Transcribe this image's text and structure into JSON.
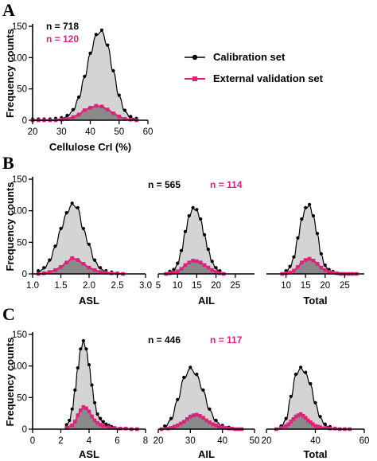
{
  "colors": {
    "calibration": "#000000",
    "validation": "#e0207a",
    "fill_calibration": "#d4d4d4",
    "fill_validation": "#8a8a8a"
  },
  "legend": {
    "calibration": "Calibration set",
    "validation": "External validation set"
  },
  "chart_data": [
    {
      "type": "scatter",
      "panel": "A",
      "xlabel": "Cellulose CrI (%)",
      "ylabel": "Frequency counts",
      "xlim": [
        20,
        60
      ],
      "ylim": [
        0,
        150
      ],
      "xticks": [
        "20",
        "30",
        "40",
        "50",
        "60"
      ],
      "yticks": [
        "0",
        "50",
        "100",
        "150"
      ],
      "n_calibration": "n = 718",
      "n_validation": "n = 120",
      "series": [
        {
          "name": "Calibration set",
          "x": [
            20,
            22,
            24,
            26,
            28,
            30,
            32,
            34,
            36,
            38,
            40,
            42,
            44,
            46,
            48,
            50,
            52,
            54,
            56
          ],
          "y": [
            0,
            0,
            0,
            0,
            1,
            2,
            6,
            15,
            35,
            68,
            105,
            135,
            142,
            118,
            77,
            38,
            14,
            4,
            1
          ]
        },
        {
          "name": "External validation set",
          "x": [
            20,
            22,
            24,
            26,
            28,
            30,
            32,
            34,
            36,
            38,
            40,
            42,
            44,
            46,
            48,
            50,
            52,
            54,
            56
          ],
          "y": [
            0,
            0,
            0,
            0,
            0,
            1,
            2,
            5,
            9,
            16,
            20,
            23,
            22,
            17,
            11,
            6,
            2,
            1,
            0
          ]
        }
      ]
    },
    {
      "type": "scatter",
      "panel": "B",
      "ylabel": "Frequency counts",
      "ylim": [
        0,
        150
      ],
      "yticks": [
        "0",
        "50",
        "100",
        "150"
      ],
      "n_calibration": "n = 565",
      "n_validation": "n = 114",
      "subplots": [
        {
          "xlabel": "ASL",
          "xlim": [
            1.0,
            3.0
          ],
          "xticks": [
            "1.0",
            "1.5",
            "2.0",
            "2.5",
            "3.0"
          ],
          "series": [
            {
              "name": "Calibration set",
              "x": [
                1.1,
                1.2,
                1.3,
                1.4,
                1.5,
                1.6,
                1.7,
                1.8,
                1.9,
                2.0,
                2.1,
                2.2,
                2.3,
                2.4
              ],
              "y": [
                3,
                8,
                20,
                42,
                70,
                95,
                110,
                103,
                70,
                45,
                20,
                8,
                3,
                1
              ]
            },
            {
              "name": "External validation set",
              "x": [
                1.1,
                1.2,
                1.3,
                1.4,
                1.5,
                1.6,
                1.7,
                1.8,
                1.9,
                2.0,
                2.1,
                2.2,
                2.3,
                2.4,
                2.5,
                2.6
              ],
              "y": [
                0,
                1,
                3,
                6,
                11,
                18,
                25,
                22,
                16,
                10,
                6,
                3,
                2,
                1,
                1,
                0
              ]
            }
          ]
        },
        {
          "xlabel": "AIL",
          "xlim": [
            5,
            30
          ],
          "xticks": [
            "5",
            "10",
            "15",
            "20",
            "25"
          ],
          "series": [
            {
              "name": "Calibration set",
              "x": [
                8,
                9,
                10,
                11,
                12,
                13,
                14,
                15,
                16,
                17,
                18,
                19,
                20,
                21
              ],
              "y": [
                2,
                5,
                15,
                35,
                65,
                90,
                103,
                100,
                85,
                60,
                37,
                18,
                8,
                3
              ]
            },
            {
              "name": "External validation set",
              "x": [
                7,
                8,
                9,
                10,
                11,
                12,
                13,
                14,
                15,
                16,
                17,
                18,
                19,
                20,
                21,
                22
              ],
              "y": [
                0,
                1,
                2,
                4,
                8,
                14,
                18,
                21,
                20,
                18,
                14,
                10,
                6,
                3,
                1,
                0
              ]
            }
          ]
        },
        {
          "xlabel": "Total",
          "xlim": [
            5,
            30
          ],
          "xticks": [
            "10",
            "15",
            "20",
            "25"
          ],
          "series": [
            {
              "name": "Calibration set",
              "x": [
                10,
                11,
                12,
                13,
                14,
                15,
                16,
                17,
                18,
                19,
                20,
                21,
                22
              ],
              "y": [
                3,
                10,
                25,
                55,
                85,
                103,
                108,
                90,
                62,
                30,
                12,
                5,
                2
              ]
            },
            {
              "name": "External validation set",
              "x": [
                9,
                10,
                11,
                12,
                13,
                14,
                15,
                16,
                17,
                18,
                19,
                20,
                21,
                22,
                23,
                24,
                25,
                26,
                27,
                28
              ],
              "y": [
                0,
                1,
                2,
                5,
                11,
                18,
                22,
                24,
                21,
                16,
                10,
                6,
                3,
                2,
                1,
                0,
                0,
                0,
                0,
                0
              ]
            }
          ]
        }
      ]
    },
    {
      "type": "scatter",
      "panel": "C",
      "ylabel": "Frequency counts",
      "ylim": [
        0,
        150
      ],
      "yticks": [
        "0",
        "50",
        "100",
        "150"
      ],
      "n_calibration": "n = 446",
      "n_validation": "n = 117",
      "subplots": [
        {
          "xlabel": "ASL",
          "xlim": [
            0,
            8
          ],
          "xticks": [
            "0",
            "2",
            "4",
            "6",
            "8"
          ],
          "series": [
            {
              "name": "Calibration set",
              "x": [
                2.4,
                2.6,
                2.8,
                3.0,
                3.2,
                3.4,
                3.6,
                3.8,
                4.0,
                4.2,
                4.4,
                4.6,
                4.8,
                5.0,
                5.2,
                5.4,
                5.6
              ],
              "y": [
                5,
                12,
                30,
                60,
                95,
                125,
                138,
                125,
                100,
                68,
                40,
                22,
                15,
                10,
                6,
                4,
                2
              ]
            },
            {
              "name": "External validation set",
              "x": [
                2.4,
                2.8,
                3.0,
                3.2,
                3.4,
                3.6,
                3.8,
                4.0,
                4.2,
                4.4,
                4.6,
                4.8,
                5.0,
                5.4,
                5.8,
                6.2,
                6.6,
                7.0,
                7.4
              ],
              "y": [
                2,
                6,
                12,
                22,
                30,
                35,
                33,
                28,
                20,
                14,
                10,
                7,
                5,
                3,
                2,
                1,
                1,
                0,
                0
              ]
            }
          ]
        },
        {
          "xlabel": "AIL",
          "xlim": [
            20,
            50
          ],
          "xticks": [
            "20",
            "30",
            "40",
            "50"
          ],
          "series": [
            {
              "name": "Calibration set",
              "x": [
                22,
                24,
                26,
                28,
                30,
                32,
                34,
                36,
                38,
                40,
                42
              ],
              "y": [
                3,
                15,
                45,
                80,
                96,
                85,
                60,
                30,
                12,
                4,
                1
              ]
            },
            {
              "name": "External validation set",
              "x": [
                21,
                23,
                24,
                25,
                26,
                27,
                28,
                29,
                30,
                31,
                32,
                33,
                34,
                35,
                36,
                37,
                38,
                39,
                40,
                41,
                42,
                43,
                44,
                45,
                46
              ],
              "y": [
                0,
                1,
                2,
                4,
                6,
                9,
                12,
                16,
                20,
                22,
                23,
                21,
                18,
                14,
                11,
                8,
                6,
                4,
                3,
                2,
                1,
                1,
                0,
                0,
                0
              ]
            }
          ]
        },
        {
          "xlabel": "Total",
          "xlim": [
            20,
            60
          ],
          "xticks": [
            "20",
            "40",
            "60"
          ],
          "series": [
            {
              "name": "Calibration set",
              "x": [
                26,
                28,
                30,
                32,
                34,
                36,
                38,
                40,
                42,
                44,
                46
              ],
              "y": [
                3,
                15,
                50,
                85,
                96,
                88,
                70,
                40,
                18,
                6,
                2
              ]
            },
            {
              "name": "External validation set",
              "x": [
                24,
                26,
                28,
                29,
                30,
                31,
                32,
                33,
                34,
                35,
                36,
                37,
                38,
                39,
                40,
                41,
                42,
                44,
                46,
                48,
                50,
                52,
                54
              ],
              "y": [
                0,
                2,
                5,
                8,
                12,
                16,
                20,
                22,
                24,
                21,
                18,
                14,
                11,
                8,
                5,
                4,
                3,
                2,
                1,
                1,
                0,
                0,
                0
              ]
            }
          ]
        }
      ]
    }
  ]
}
